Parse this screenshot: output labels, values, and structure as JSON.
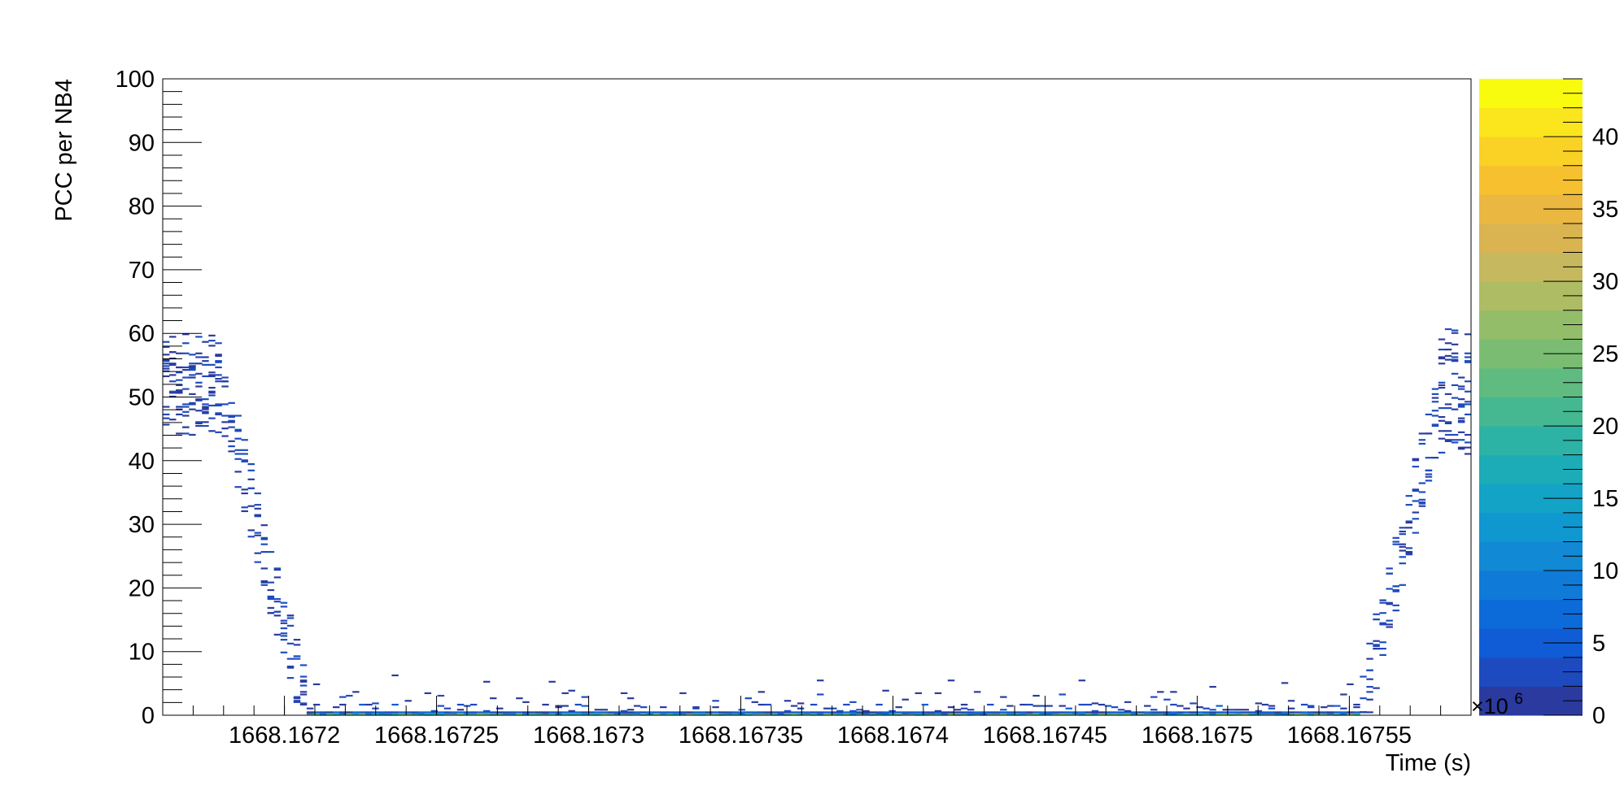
{
  "chart_data": {
    "type": "heatmap",
    "xlabel": "Time (s)",
    "ylabel": "PCC per NB4",
    "xlim": [
      1668.16716,
      1668.16759
    ],
    "ylim": [
      0,
      100
    ],
    "x_ticks": [
      1668.1672,
      1668.16725,
      1668.1673,
      1668.16735,
      1668.1674,
      1668.16745,
      1668.1675,
      1668.16755
    ],
    "x_tick_labels": [
      "1668.1672",
      "1668.16725",
      "1668.1673",
      "1668.16735",
      "1668.1674",
      "1668.16745",
      "1668.1675",
      "1668.16755"
    ],
    "y_ticks": [
      0,
      10,
      20,
      30,
      40,
      50,
      60,
      70,
      80,
      90,
      100
    ],
    "y_tick_labels": [
      "0",
      "10",
      "20",
      "30",
      "40",
      "50",
      "60",
      "70",
      "80",
      "90",
      "100"
    ],
    "colorbar": {
      "range": [
        0,
        44
      ],
      "ticks": [
        0,
        5,
        10,
        15,
        20,
        25,
        30,
        35,
        40
      ],
      "tick_labels": [
        "0",
        "5",
        "10",
        "15",
        "20",
        "25",
        "30",
        "35",
        "40"
      ],
      "multiplier": "×10",
      "multiplier_exp": "6",
      "palette": [
        "#2a3a9e",
        "#1d4bbf",
        "#0f5cd6",
        "#0d6ad9",
        "#0f7ad7",
        "#1189d4",
        "#0f97cf",
        "#12a3c6",
        "#1cacb7",
        "#2cb3a5",
        "#45b892",
        "#5fbb80",
        "#7abd72",
        "#94bd69",
        "#aebc64",
        "#c5b85f",
        "#dab451",
        "#eab741",
        "#f6c02f",
        "#fad125",
        "#fbe61d",
        "#f9fb0e"
      ]
    },
    "note_units": "z in units of 1e6",
    "baseline": {
      "description": "dense band of high-count cells at PCC 0-1 between the two edge regions",
      "x_range": [
        1668.167207,
        1668.167554
      ],
      "y_range": [
        0,
        1
      ]
    },
    "left_region": {
      "plateau_x": [
        1668.16716,
        1668.16718
      ],
      "plateau_y": [
        44,
        60
      ],
      "drop_x": [
        1668.16718,
        1668.167207
      ],
      "drop_y": [
        50,
        1
      ]
    },
    "right_region": {
      "rise_x": [
        1668.167554,
        1668.16758
      ],
      "rise_y": [
        1,
        50
      ],
      "plateau_x": [
        1668.16758,
        1668.16759
      ],
      "plateau_y": [
        41,
        61
      ]
    }
  }
}
